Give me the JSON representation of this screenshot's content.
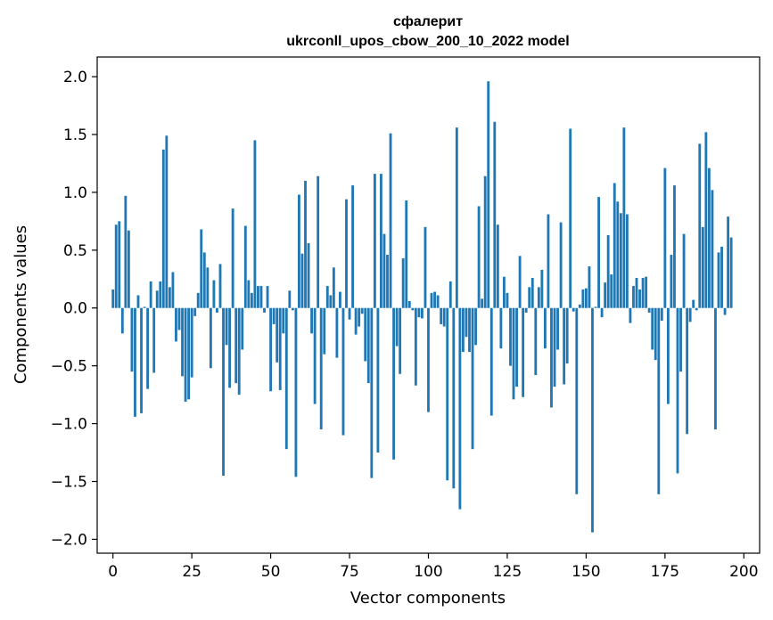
{
  "chart_data": {
    "type": "bar",
    "title": "сфалерит",
    "subtitle": "ukrconll_upos_cbow_200_10_2022 model",
    "xlabel": "Vector components",
    "ylabel": "Components values",
    "xlim": [
      -5,
      205
    ],
    "ylim": [
      -2.12,
      2.17
    ],
    "xticks": [
      0,
      25,
      50,
      75,
      100,
      125,
      150,
      175,
      200
    ],
    "xtick_labels": [
      "0",
      "25",
      "50",
      "75",
      "100",
      "125",
      "150",
      "175",
      "200"
    ],
    "yticks": [
      2.0,
      1.5,
      1.0,
      0.5,
      0.0,
      -0.5,
      -1.0,
      -1.5,
      -2.0
    ],
    "ytick_labels": [
      "2.0",
      "1.5",
      "1.0",
      "0.5",
      "0.0",
      "−0.5",
      "−1.0",
      "−1.5",
      "−2.0"
    ],
    "bar_color": "#1f77b4",
    "values": [
      0.16,
      0.72,
      0.75,
      -0.22,
      0.97,
      0.67,
      -0.55,
      -0.94,
      0.11,
      -0.91,
      0.01,
      -0.7,
      0.23,
      -0.56,
      0.15,
      0.23,
      1.37,
      1.49,
      0.18,
      0.31,
      -0.29,
      -0.19,
      -0.59,
      -0.81,
      -0.79,
      -0.6,
      -0.07,
      0.13,
      0.68,
      0.48,
      0.35,
      -0.52,
      0.24,
      -0.04,
      0.38,
      -1.45,
      -0.32,
      -0.69,
      0.86,
      -0.65,
      -0.75,
      -0.36,
      0.71,
      0.24,
      0.13,
      1.45,
      0.19,
      0.19,
      -0.04,
      0.19,
      -0.72,
      -0.14,
      -0.47,
      -0.71,
      -0.22,
      -1.22,
      0.15,
      -0.02,
      -1.46,
      0.98,
      0.47,
      1.1,
      0.56,
      -0.22,
      -0.83,
      1.14,
      -1.05,
      -0.4,
      0.19,
      0.11,
      0.35,
      -0.43,
      0.14,
      -1.1,
      0.94,
      -0.1,
      1.06,
      -0.23,
      -0.16,
      -0.05,
      -0.46,
      -0.65,
      -1.47,
      1.16,
      -1.25,
      1.16,
      0.64,
      0.46,
      1.51,
      -1.31,
      -0.33,
      -0.57,
      0.43,
      0.93,
      0.06,
      -0.02,
      -0.67,
      -0.08,
      -0.09,
      0.7,
      -0.9,
      0.13,
      0.14,
      0.11,
      -0.14,
      -0.16,
      -1.49,
      0.23,
      -1.56,
      1.56,
      -1.74,
      -0.38,
      -0.25,
      -0.38,
      -1.22,
      -0.32,
      0.88,
      0.08,
      1.14,
      1.96,
      -0.93,
      1.61,
      0.72,
      -0.35,
      0.27,
      0.13,
      -0.5,
      -0.79,
      -0.68,
      0.45,
      -0.77,
      -0.04,
      0.18,
      0.26,
      -0.58,
      0.18,
      0.33,
      -0.35,
      0.81,
      -0.86,
      -0.68,
      -0.36,
      0.74,
      -0.66,
      -0.48,
      1.55,
      -0.03,
      -1.61,
      0.03,
      0.16,
      0.17,
      0.36,
      -1.94,
      0.01,
      0.96,
      -0.08,
      0.22,
      0.63,
      0.29,
      1.08,
      0.92,
      0.82,
      1.56,
      0.81,
      -0.13,
      0.19,
      0.26,
      0.16,
      0.26,
      0.27,
      -0.04,
      -0.36,
      -0.45,
      -1.61,
      -0.11,
      1.21,
      -0.83,
      0.46,
      1.06,
      -1.43,
      -0.55,
      0.64,
      -1.09,
      -0.12,
      0.07,
      -0.02,
      1.42,
      0.7,
      1.52,
      1.21,
      1.02,
      -1.05,
      0.48,
      0.53,
      -0.06,
      0.79,
      0.61
    ]
  }
}
